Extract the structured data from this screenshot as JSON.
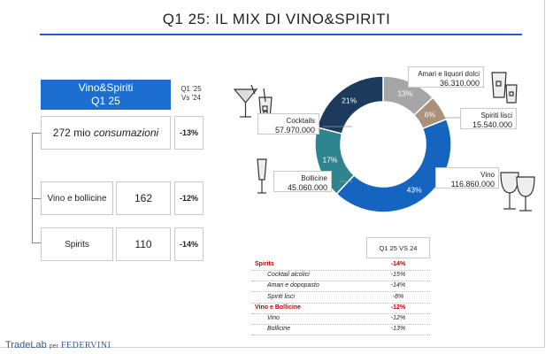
{
  "title": "Q1 25: IL MIX DI VINO&SPIRITI",
  "summary": {
    "header_line1": "Vino&Spiriti",
    "header_line2": "Q1 25",
    "delta_header_line1": "Q1 '25",
    "delta_header_line2": "Vs '24",
    "total_number": "272 mio",
    "total_unit": "consumazioni",
    "total_delta": "-13%",
    "rows": [
      {
        "label": "Vino e bollicine",
        "value": "162",
        "delta": "-12%"
      },
      {
        "label": "Spirits",
        "value": "110",
        "delta": "-14%"
      }
    ]
  },
  "chart_data": {
    "type": "pie",
    "labels": [
      "Amari e liquori dolci",
      "Spiriti lisci",
      "Vino",
      "Bollicine",
      "Cocktails"
    ],
    "values": [
      13,
      6,
      43,
      17,
      21
    ],
    "percent_labels": [
      "13%",
      "6%",
      "43%",
      "17%",
      "21%"
    ],
    "volumes": [
      "36.310.000",
      "15.540.000",
      "116.860.000",
      "45.060.000",
      "57.970.000"
    ],
    "colors": [
      "#a6a6a6",
      "#a9917a",
      "#1565c0",
      "#2e8590",
      "#1b3a5c"
    ]
  },
  "callouts": {
    "amari": {
      "label": "Amari e liquori dolci",
      "value": "36.310.000"
    },
    "spiriti": {
      "label": "Spiriti lisci",
      "value": "15.540.000"
    },
    "vino": {
      "label": "Vino",
      "value": "116.860.000"
    },
    "bollicine": {
      "label": "Bollicine",
      "value": "45.060.000"
    },
    "cocktails": {
      "label": "Cocktails",
      "value": "57.970.000"
    }
  },
  "table": {
    "header": "Q1 25 VS 24",
    "rows": [
      {
        "label": "Spirits",
        "value": "-14%",
        "kind": "section"
      },
      {
        "label": "Cocktail alcolici",
        "value": "-15%",
        "kind": "sub"
      },
      {
        "label": "Amari e dopopasto",
        "value": "-14%",
        "kind": "sub"
      },
      {
        "label": "Spiriti lisci",
        "value": "-8%",
        "kind": "sub"
      },
      {
        "label": "Vino e Bollicine",
        "value": "-12%",
        "kind": "section"
      },
      {
        "label": "Vino",
        "value": "-12%",
        "kind": "sub"
      },
      {
        "label": "Bollicine",
        "value": "-13%",
        "kind": "sub"
      }
    ]
  },
  "footer": {
    "brand": "TradeLab",
    "per": "per",
    "partner": "FEDERVINI"
  },
  "icons": [
    "cocktail-glass-icon",
    "whisky-glass-icon",
    "champagne-glass-icon",
    "wine-glasses-icon"
  ]
}
